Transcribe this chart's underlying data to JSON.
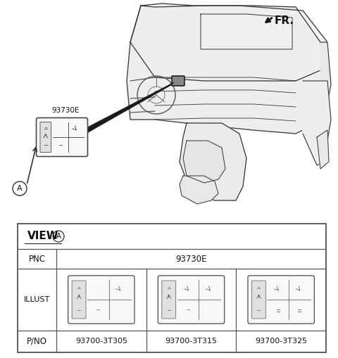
{
  "bg_color": "#ffffff",
  "fr_label": "FR.",
  "part_label_main": "93730E",
  "view_label": "VIEW",
  "circle_label": "A",
  "table_pnc": "93730E",
  "table_pno": [
    "93700-3T305",
    "93700-3T315",
    "93700-3T325"
  ],
  "line_color": "#333333",
  "text_color": "#111111",
  "fig_w": 4.8,
  "fig_h": 5.09,
  "dpi": 100
}
